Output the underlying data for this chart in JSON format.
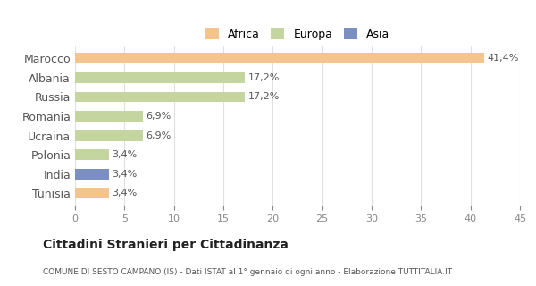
{
  "categories": [
    "Marocco",
    "Albania",
    "Russia",
    "Romania",
    "Ucraina",
    "Polonia",
    "India",
    "Tunisia"
  ],
  "values": [
    41.4,
    17.2,
    17.2,
    6.9,
    6.9,
    3.4,
    3.4,
    3.4
  ],
  "labels": [
    "41,4%",
    "17,2%",
    "17,2%",
    "6,9%",
    "6,9%",
    "3,4%",
    "3,4%",
    "3,4%"
  ],
  "colors": [
    "#F5C48E",
    "#C5D5A0",
    "#C5D5A0",
    "#C5D5A0",
    "#C5D5A0",
    "#C5D5A0",
    "#7B8FC0",
    "#F5C48E"
  ],
  "legend_labels": [
    "Africa",
    "Europa",
    "Asia"
  ],
  "legend_colors": [
    "#F5C48E",
    "#C5D5A0",
    "#7B8FC0"
  ],
  "xlim": [
    0,
    45
  ],
  "xticks": [
    0,
    5,
    10,
    15,
    20,
    25,
    30,
    35,
    40,
    45
  ],
  "title": "Cittadini Stranieri per Cittadinanza",
  "subtitle": "COMUNE DI SESTO CAMPANO (IS) - Dati ISTAT al 1° gennaio di ogni anno - Elaborazione TUTTITALIA.IT",
  "bg_color": "#FFFFFF",
  "grid_color": "#E0E0E0",
  "bar_height": 0.55
}
